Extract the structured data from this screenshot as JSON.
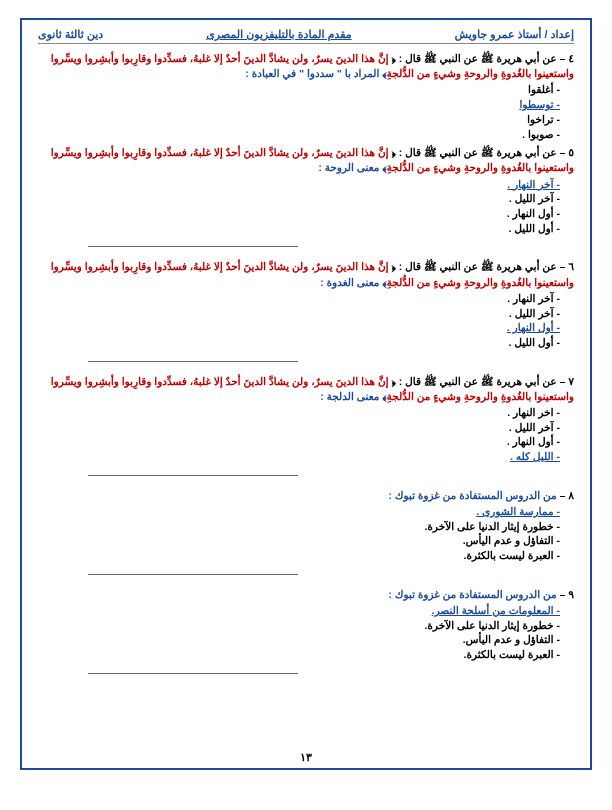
{
  "header": {
    "right": "إعداد / أستاذ عمرو جاويش",
    "center": "مقدم المادة بالتليفزيون المصرى",
    "left": "دين ثالثة ثانوى"
  },
  "q4": {
    "num": "٤ – عن أبي هريرة ﷺ عن النبي ﷺ قال : ﴿ ",
    "hadith": "إنَّ هذا الدينَ يسرٌ، ولن يشادَّ الدينَ أحدٌ إلا غلبهُ، فسدِّدوا وقارِبوا وأبشِروا ويسِّروا واستعينوا بالغُدوةِ والروحةِ وشيءٍ من الدُّلجةِ",
    "tail": "﴾  المراد با \" سددوا \" في العبادة :",
    "opts": [
      "- أغلقوا",
      "- توسطوا",
      "- تراخوا",
      "- صوبوا ."
    ],
    "correct": 1
  },
  "q5": {
    "num": "٥ – عن أبي هريرة ﷺ عن النبي ﷺ قال : ﴿ ",
    "hadith": "إنَّ هذا الدينَ يسرٌ، ولن يشادَّ الدينَ أحدٌ إلا غلبهُ، فسدِّدوا وقارِبوا وأبشِروا ويسِّروا واستعينوا بالغُدوةِ والروحةِ وشيءٍ من الدُّلجةِ",
    "tail": "﴾  معنى الروحة :",
    "opts": [
      "- آخر النهار .",
      "- آخر الليل .",
      "- أول النهار .",
      "- أول الليل ."
    ],
    "correct": 0
  },
  "q6": {
    "num": "٦ – عن أبي هريرة ﷺ عن النبي ﷺ قال : ﴿ ",
    "hadith": "إنَّ هذا الدينَ يسرٌ، ولن يشادَّ الدينَ أحدٌ إلا غلبهُ، فسدِّدوا وقارِبوا وأبشِروا ويسِّروا واستعينوا بالغُدوةِ والروحةِ وشيءٍ من الدُّلجةِ",
    "tail": "﴾  معنى الغدوة :",
    "opts": [
      "- آخر النهار .",
      "- آخر الليل .",
      "- أول النهار .",
      "- أول الليل ."
    ],
    "correct": 2
  },
  "q7": {
    "num": "٧ – عن أبي هريرة ﷺ عن النبي ﷺ قال : ﴿ ",
    "hadith": "إنَّ هذا الدينَ يسرٌ، ولن يشادَّ الدينَ أحدٌ إلا غلبهُ، فسدِّدوا وقارِبوا وأبشِروا ويسِّروا واستعينوا بالغُدوةِ والروحةِ وشيءٍ من الدُّلجةِ",
    "tail": "﴾  معنى الدلجة :",
    "opts": [
      "- اخر النهار .",
      "- آخر الليل .",
      "- أول النهار .",
      "- الليل كله ."
    ],
    "correct": 3
  },
  "q8": {
    "num": "٨ – ",
    "tail": "من الدروس المستفادة من غزوة تبوك :",
    "opts": [
      "- ممارسة الشورى .",
      "- خطورة إيثار الدنيا على الآخرة.",
      "- التفاؤل و عدم اليأس.",
      "- العبرة ليست بالكثرة."
    ],
    "correct": 0
  },
  "q9": {
    "num": "٩ – ",
    "tail": "من الدروس المستفادة من غزوة تبوك :",
    "opts": [
      "- المعلومات من أسلحة النصر.",
      "- خطورة إيثار الدنيا على الآخرة.",
      "- التفاؤل و عدم اليأس.",
      "- العبرة ليست بالكثرة."
    ],
    "correct": 0
  },
  "pagenum": "١٣"
}
